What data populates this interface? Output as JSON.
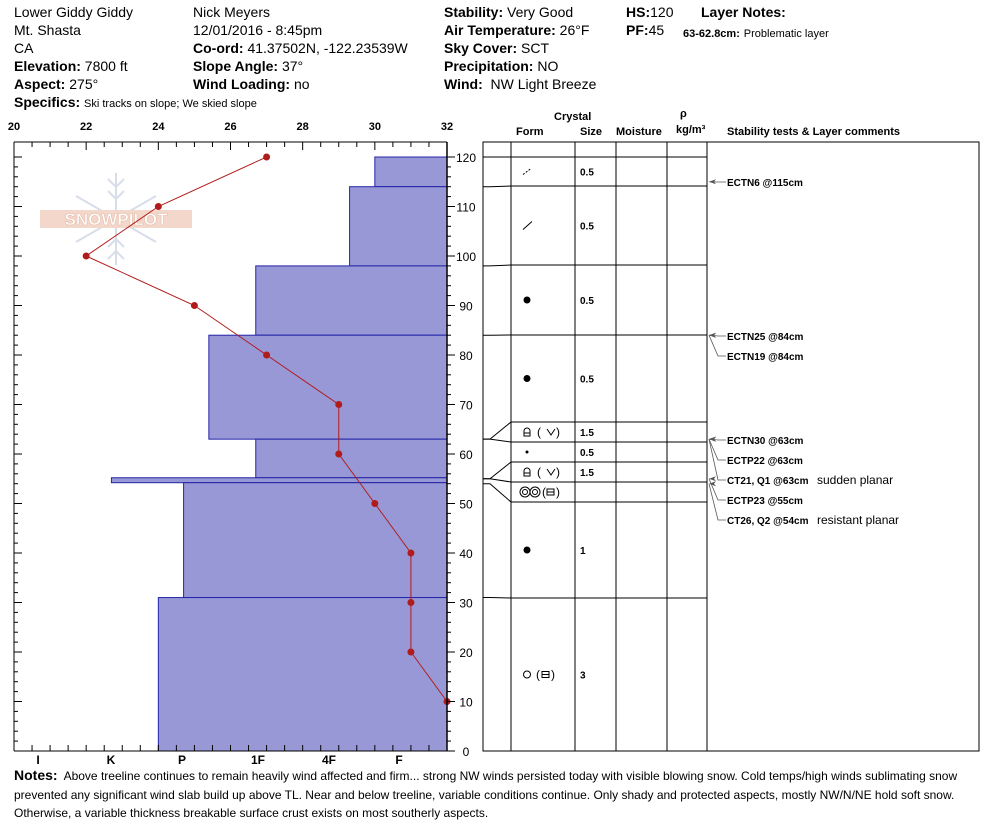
{
  "header": {
    "location": "Lower Giddy Giddy",
    "range": "Mt. Shasta",
    "state": "CA",
    "elevation_label": "Elevation:",
    "elevation": "7800 ft",
    "aspect_label": "Aspect:",
    "aspect": "275°",
    "specifics_label": "Specifics:",
    "specifics": "Ski tracks on slope; We skied slope",
    "observer": "Nick Meyers",
    "datetime": "12/01/2016 - 8:45pm",
    "coord_label": "Co-ord:",
    "coord": "41.37502N, -122.23539W",
    "slope_label": "Slope Angle:",
    "slope": "37°",
    "wind_loading_label": "Wind Loading:",
    "wind_loading": "no",
    "stability_label": "Stability:",
    "stability": "Very Good",
    "air_temp_label": "Air Temperature:",
    "air_temp": "26°F",
    "sky_label": "Sky Cover:",
    "sky": "SCT",
    "precip_label": "Precipitation:",
    "precip": "NO",
    "wind_label": "Wind:",
    "wind": "NW Light Breeze",
    "hs_label": "HS:",
    "hs": "120",
    "pf_label": "PF:",
    "pf": "45",
    "layer_notes_label": "Layer Notes:",
    "layer_note_range": "63-62.8cm:",
    "layer_note_text": "Problematic layer"
  },
  "columns": {
    "crystal": "Crystal",
    "form": "Form",
    "size": "Size",
    "moisture": "Moisture",
    "rho": "ρ",
    "density_unit": "kg/m³",
    "stability_tests": "Stability tests & Layer comments"
  },
  "logo_text": "SNOWPILOT",
  "colors": {
    "hardness_fill": "#9898d6",
    "hardness_edge": "#2424a8",
    "temp_line": "#b01c1c"
  },
  "notes_label": "Notes:",
  "notes": "Above treeline continues to remain heavily wind affected and firm... strong NW winds persisted today with visible blowing snow. Cold temps/high winds sublimating snow prevented any significant wind slab build up above TL. Near and below treeline, variable conditions continue. Only shady and protected aspects, mostly NW/N/NE hold soft snow. Otherwise, a variable thickness breakable surface crust exists on most southerly aspects.",
  "chart_data": {
    "type": "snow-profile",
    "temp_axis": {
      "label_values": [
        20,
        22,
        24,
        26,
        28,
        30,
        32
      ],
      "range": [
        20,
        32
      ],
      "unit": "°F"
    },
    "depth_axis": {
      "range": [
        0,
        120
      ],
      "unit": "cm",
      "ticks": [
        0,
        10,
        20,
        30,
        40,
        50,
        60,
        70,
        80,
        90,
        100,
        110,
        120
      ]
    },
    "hardness_axis": {
      "labels": [
        "I",
        "K",
        "P",
        "1F",
        "4F",
        "F"
      ]
    },
    "hardness_layers": [
      {
        "top": 120,
        "bottom": 114,
        "temp_value": 30.0
      },
      {
        "top": 114,
        "bottom": 98,
        "temp_value": 29.3
      },
      {
        "top": 98,
        "bottom": 84,
        "temp_value": 26.7
      },
      {
        "top": 84,
        "bottom": 63,
        "temp_value": 25.4
      },
      {
        "top": 63,
        "bottom": 55.2,
        "temp_value": 26.7
      },
      {
        "top": 55.2,
        "bottom": 54.2,
        "temp_value": 22.7
      },
      {
        "top": 54.2,
        "bottom": 31,
        "temp_value": 24.7
      },
      {
        "top": 31,
        "bottom": 0,
        "temp_value": 24.0
      }
    ],
    "temperature_profile": [
      {
        "depth": 120,
        "temp": 27
      },
      {
        "depth": 110,
        "temp": 24
      },
      {
        "depth": 100,
        "temp": 22
      },
      {
        "depth": 90,
        "temp": 25
      },
      {
        "depth": 80,
        "temp": 27
      },
      {
        "depth": 70,
        "temp": 29
      },
      {
        "depth": 60,
        "temp": 29
      },
      {
        "depth": 50,
        "temp": 30
      },
      {
        "depth": 40,
        "temp": 31
      },
      {
        "depth": 30,
        "temp": 31
      },
      {
        "depth": 20,
        "temp": 31
      },
      {
        "depth": 10,
        "temp": 32
      }
    ],
    "layers": [
      {
        "top": 120,
        "bottom": 114,
        "form": "small-dash",
        "size": "0.5"
      },
      {
        "top": 114,
        "bottom": 98,
        "form": "slash",
        "size": "0.5"
      },
      {
        "top": 98,
        "bottom": 84,
        "form": "filled-dot",
        "size": "0.5"
      },
      {
        "top": 84,
        "bottom": 66.5,
        "form": "filled-dot",
        "size": "0.5"
      },
      {
        "top": 66.5,
        "bottom": 62.5,
        "form": "cup ( v )",
        "size": "1.5"
      },
      {
        "top": 62.5,
        "bottom": 59,
        "form": "small-dot",
        "size": "0.5"
      },
      {
        "top": 59,
        "bottom": 55,
        "form": "cup ( v )",
        "size": "1.5"
      },
      {
        "top": 55,
        "bottom": 51,
        "form": "double-circle ( = )",
        "size": ""
      },
      {
        "top": 51,
        "bottom": 31,
        "form": "filled-dot",
        "size": "1"
      },
      {
        "top": 31,
        "bottom": 0,
        "form": "circle ( = )",
        "size": "3"
      }
    ],
    "stability_tests": [
      {
        "label": "ECTN6 @115cm",
        "depth": 115,
        "comment": ""
      },
      {
        "label": "ECTN25 @84cm",
        "depth": 84,
        "comment": ""
      },
      {
        "label": "ECTN19 @84cm",
        "depth": 84,
        "comment": ""
      },
      {
        "label": "ECTN30 @63cm",
        "depth": 63,
        "comment": ""
      },
      {
        "label": "ECTP22 @63cm",
        "depth": 63,
        "comment": ""
      },
      {
        "label": "CT21, Q1 @63cm",
        "depth": 63,
        "comment": "sudden planar"
      },
      {
        "label": "ECTP23 @55cm",
        "depth": 55,
        "comment": ""
      },
      {
        "label": "CT26, Q2 @54cm",
        "depth": 54,
        "comment": "resistant planar"
      }
    ]
  }
}
